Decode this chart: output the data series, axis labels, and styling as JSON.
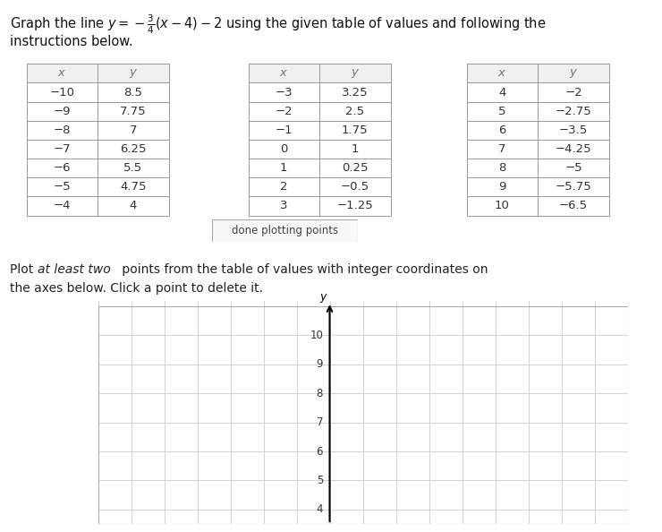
{
  "title_line1": "Graph the line $y = -\\frac{3}{4}(x - 4) - 2$ using the given table of values and following the",
  "title_line2": "instructions below.",
  "table1": {
    "headers": [
      "$x$",
      "$y$"
    ],
    "rows": [
      [
        "−10",
        "8.5"
      ],
      [
        "−9",
        "7.75"
      ],
      [
        "−8",
        "7"
      ],
      [
        "−7",
        "6.25"
      ],
      [
        "−6",
        "5.5"
      ],
      [
        "−5",
        "4.75"
      ],
      [
        "−4",
        "4"
      ]
    ]
  },
  "table2": {
    "headers": [
      "$x$",
      "$y$"
    ],
    "rows": [
      [
        "−3",
        "3.25"
      ],
      [
        "−2",
        "2.5"
      ],
      [
        "−1",
        "1.75"
      ],
      [
        "0",
        "1"
      ],
      [
        "1",
        "0.25"
      ],
      [
        "2",
        "−0.5"
      ],
      [
        "3",
        "−1.25"
      ]
    ]
  },
  "table3": {
    "headers": [
      "$x$",
      "$y$"
    ],
    "rows": [
      [
        "4",
        "−2"
      ],
      [
        "5",
        "−2.75"
      ],
      [
        "6",
        "−3.5"
      ],
      [
        "7",
        "−4.25"
      ],
      [
        "8",
        "−5"
      ],
      [
        "9",
        "−5.75"
      ],
      [
        "10",
        "−6.5"
      ]
    ]
  },
  "button_text": "done plotting points",
  "axis_y_ticks": [
    4,
    5,
    6,
    7,
    8,
    9,
    10
  ],
  "background_color": "#ffffff",
  "grid_color": "#cccccc",
  "header_bg": "#f0f0f0"
}
